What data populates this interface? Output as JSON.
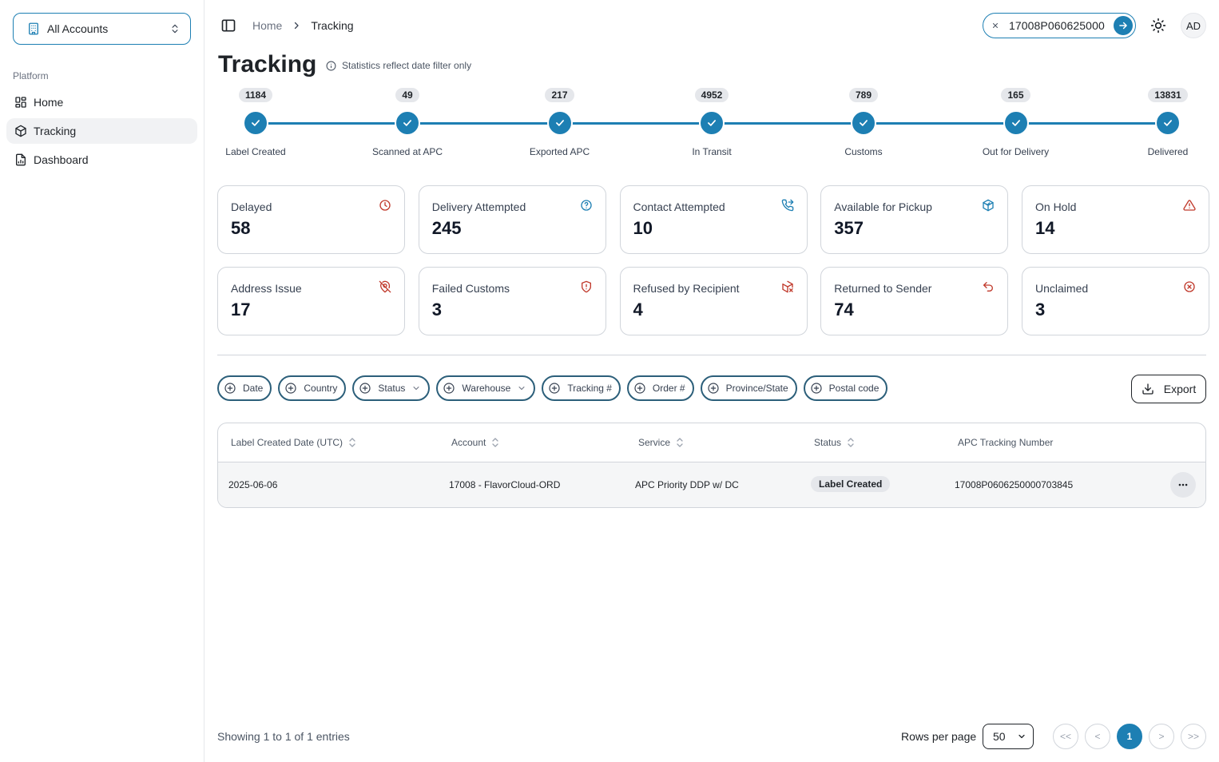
{
  "sidebar": {
    "account_switcher_label": "All Accounts",
    "section_label": "Platform",
    "items": [
      {
        "label": "Home",
        "icon": "layout-grid-icon"
      },
      {
        "label": "Tracking",
        "icon": "package-icon",
        "active": true
      },
      {
        "label": "Dashboard",
        "icon": "file-chart-icon"
      }
    ]
  },
  "header": {
    "breadcrumb": [
      "Home",
      "Tracking"
    ],
    "search_value": "17008P060625000",
    "avatar_initials": "AD"
  },
  "page": {
    "title": "Tracking",
    "note": "Statistics reflect date filter only"
  },
  "stepper": [
    {
      "count": "1184",
      "label": "Label Created"
    },
    {
      "count": "49",
      "label": "Scanned at APC"
    },
    {
      "count": "217",
      "label": "Exported APC"
    },
    {
      "count": "4952",
      "label": "In Transit"
    },
    {
      "count": "789",
      "label": "Customs"
    },
    {
      "count": "165",
      "label": "Out for Delivery"
    },
    {
      "count": "13831",
      "label": "Delivered"
    }
  ],
  "cards": [
    {
      "label": "Delayed",
      "value": "58",
      "icon": "clock-icon",
      "color": "#c0392b"
    },
    {
      "label": "Delivery Attempted",
      "value": "245",
      "icon": "help-circle-icon",
      "color": "#1d7fb3"
    },
    {
      "label": "Contact Attempted",
      "value": "10",
      "icon": "phone-forward-icon",
      "color": "#1d7fb3"
    },
    {
      "label": "Available for Pickup",
      "value": "357",
      "icon": "package-check-icon",
      "color": "#1d7fb3"
    },
    {
      "label": "On Hold",
      "value": "14",
      "icon": "alert-triangle-icon",
      "color": "#c0392b"
    },
    {
      "label": "Address Issue",
      "value": "17",
      "icon": "map-pin-off-icon",
      "color": "#c0392b"
    },
    {
      "label": "Failed Customs",
      "value": "3",
      "icon": "shield-alert-icon",
      "color": "#c0392b"
    },
    {
      "label": "Refused by Recipient",
      "value": "4",
      "icon": "package-x-icon",
      "color": "#c0392b"
    },
    {
      "label": "Returned to Sender",
      "value": "74",
      "icon": "undo-icon",
      "color": "#c0392b"
    },
    {
      "label": "Unclaimed",
      "value": "3",
      "icon": "x-circle-icon",
      "color": "#c0392b"
    }
  ],
  "filters": [
    {
      "label": "Date",
      "dropdown": false
    },
    {
      "label": "Country",
      "dropdown": false
    },
    {
      "label": "Status",
      "dropdown": true
    },
    {
      "label": "Warehouse",
      "dropdown": true
    },
    {
      "label": "Tracking #",
      "dropdown": false
    },
    {
      "label": "Order #",
      "dropdown": false
    },
    {
      "label": "Province/State",
      "dropdown": false
    },
    {
      "label": "Postal code",
      "dropdown": false
    }
  ],
  "export_label": "Export",
  "table": {
    "columns": [
      "Label Created Date (UTC)",
      "Account",
      "Service",
      "Status",
      "APC Tracking Number"
    ],
    "rows": [
      {
        "date": "2025-06-06",
        "account": "17008 - FlavorCloud-ORD",
        "service": "APC Priority DDP w/ DC",
        "status": "Label Created",
        "tracking": "17008P0606250000703845"
      }
    ]
  },
  "footer": {
    "showing": "Showing 1 to 1 of 1 entries",
    "rows_label": "Rows per page",
    "rows_value": "50",
    "pages": {
      "first": "<<",
      "prev": "<",
      "current": "1",
      "next": ">",
      "last": ">>"
    }
  },
  "colors": {
    "accent": "#1d7fb3",
    "danger": "#c0392b"
  }
}
